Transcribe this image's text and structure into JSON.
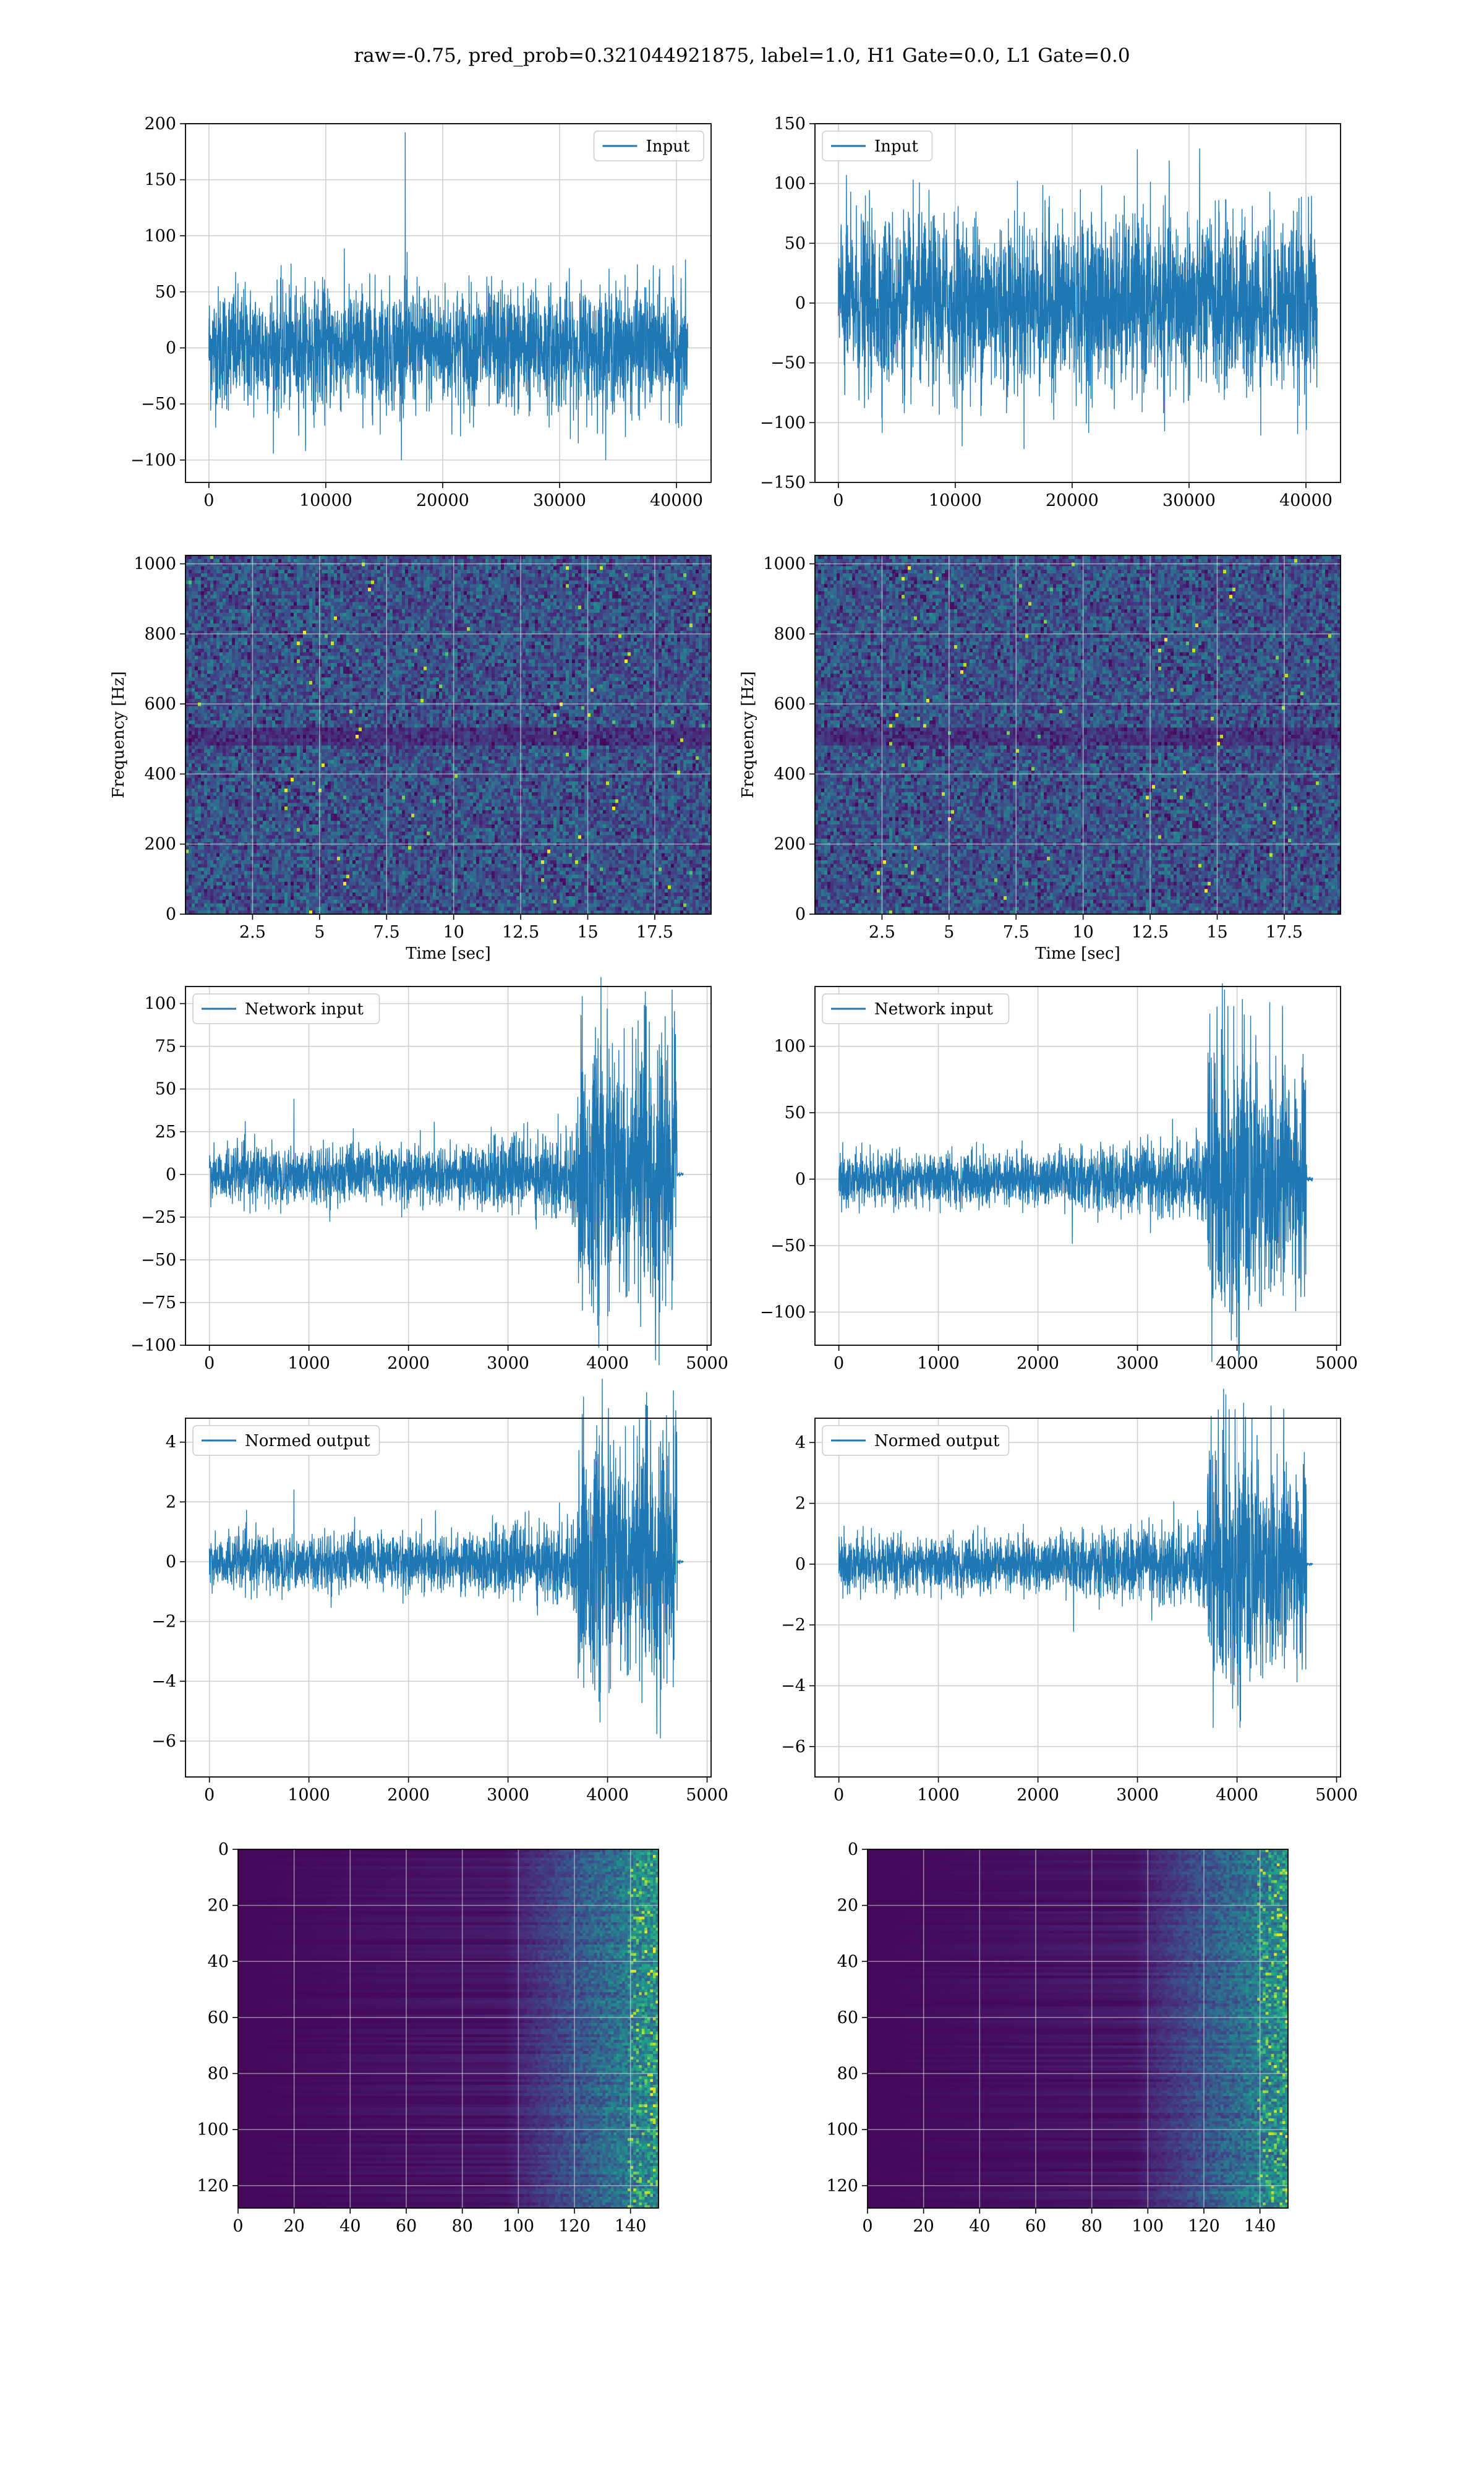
{
  "figure_title": "raw=-0.75, pred_prob=0.321044921875, label=1.0, H1 Gate=0.0, L1 Gate=0.0",
  "colors": {
    "line": "#1f77b4",
    "grid": "#d0d0d0",
    "viridis_low": "#440154",
    "viridis_high": "#fde725"
  },
  "chart_data": [
    {
      "id": "input-h1",
      "type": "line",
      "legend": "Input",
      "legend_loc": "upper right",
      "grid": true,
      "xlim": [
        -2000,
        42960
      ],
      "ylim": [
        -120,
        200
      ],
      "xticks": [
        0,
        10000,
        20000,
        30000,
        40000
      ],
      "yticks": [
        -100,
        -50,
        0,
        50,
        100,
        150,
        200
      ],
      "n": 40960,
      "envelope": {
        "mean": 0,
        "rms_band": 60,
        "peak_band": 100,
        "spike": {
          "x": 16800,
          "y": 192
        }
      }
    },
    {
      "id": "input-l1",
      "type": "line",
      "legend": "Input",
      "legend_loc": "upper left",
      "grid": true,
      "xlim": [
        -2000,
        42960
      ],
      "ylim": [
        -150,
        150
      ],
      "xticks": [
        0,
        10000,
        20000,
        30000,
        40000
      ],
      "yticks": [
        -150,
        -100,
        -50,
        0,
        50,
        100,
        150
      ],
      "n": 40960,
      "envelope": {
        "mean": 0,
        "rms_band": 80,
        "peak_band": 130
      }
    },
    {
      "id": "qtransform-h1",
      "type": "heatmap",
      "grid": true,
      "xlabel": "Time [sec]",
      "ylabel": "Frequency [Hz]",
      "xlim": [
        0,
        19.6
      ],
      "ylim": [
        0,
        1024
      ],
      "xticks": [
        2.5,
        5.0,
        7.5,
        10.0,
        12.5,
        15.0,
        17.5
      ],
      "yticks": [
        0,
        200,
        400,
        600,
        800,
        1000
      ]
    },
    {
      "id": "qtransform-l1",
      "type": "heatmap",
      "grid": true,
      "xlabel": "Time [sec]",
      "ylabel": "Frequency [Hz]",
      "xlim": [
        0,
        19.6
      ],
      "ylim": [
        0,
        1024
      ],
      "xticks": [
        2.5,
        5.0,
        7.5,
        10.0,
        12.5,
        15.0,
        17.5
      ],
      "yticks": [
        0,
        200,
        400,
        600,
        800,
        1000
      ]
    },
    {
      "id": "network-input-h1",
      "type": "line",
      "legend": "Network input",
      "legend_loc": "upper left",
      "grid": true,
      "xlim": [
        -240,
        5040
      ],
      "ylim": [
        -100,
        110
      ],
      "xticks": [
        0,
        1000,
        2000,
        3000,
        4000,
        5000
      ],
      "yticks": [
        -100,
        -75,
        -50,
        -25,
        0,
        25,
        50,
        75,
        100
      ],
      "n": 4800,
      "envelope": {
        "quiet_amp": 18,
        "burst_start": 3700,
        "burst_amp": 85,
        "end": 4700,
        "spike": {
          "x": 850,
          "y": 44
        }
      }
    },
    {
      "id": "network-input-l1",
      "type": "line",
      "legend": "Network input",
      "legend_loc": "upper left",
      "grid": true,
      "xlim": [
        -240,
        5040
      ],
      "ylim": [
        -125,
        145
      ],
      "xticks": [
        0,
        1000,
        2000,
        3000,
        4000,
        5000
      ],
      "yticks": [
        -100,
        -50,
        0,
        50,
        100
      ],
      "n": 4800,
      "envelope": {
        "quiet_amp": 22,
        "burst_start": 3700,
        "burst_amp": 115,
        "end": 4700
      }
    },
    {
      "id": "normed-output-h1",
      "type": "line",
      "legend": "Normed output",
      "legend_loc": "upper left",
      "grid": true,
      "xlim": [
        -240,
        5040
      ],
      "ylim": [
        -7.2,
        4.8
      ],
      "xticks": [
        0,
        1000,
        2000,
        3000,
        4000,
        5000
      ],
      "yticks": [
        -6,
        -4,
        -2,
        0,
        2,
        4
      ],
      "n": 4800,
      "envelope": {
        "quiet_amp": 1.0,
        "burst_start": 3700,
        "burst_amp": 4.5,
        "end": 4700,
        "spike": {
          "x": 850,
          "y": 2.4
        }
      }
    },
    {
      "id": "normed-output-l1",
      "type": "line",
      "legend": "Normed output",
      "legend_loc": "upper left",
      "grid": true,
      "xlim": [
        -240,
        5040
      ],
      "ylim": [
        -7.0,
        4.8
      ],
      "xticks": [
        0,
        1000,
        2000,
        3000,
        4000,
        5000
      ],
      "yticks": [
        -6,
        -4,
        -2,
        0,
        2,
        4
      ],
      "n": 4800,
      "envelope": {
        "quiet_amp": 1.0,
        "burst_start": 3700,
        "burst_amp": 4.5,
        "end": 4700
      }
    },
    {
      "id": "feature-map-h1",
      "type": "heatmap",
      "grid": true,
      "xlim": [
        0,
        150
      ],
      "ylim": [
        128,
        0
      ],
      "rows": 128,
      "cols": 150,
      "xticks": [
        0,
        20,
        40,
        60,
        80,
        100,
        120,
        140
      ],
      "yticks": [
        0,
        20,
        40,
        60,
        80,
        100,
        120
      ]
    },
    {
      "id": "feature-map-l1",
      "type": "heatmap",
      "grid": true,
      "xlim": [
        0,
        150
      ],
      "ylim": [
        128,
        0
      ],
      "rows": 128,
      "cols": 150,
      "xticks": [
        0,
        20,
        40,
        60,
        80,
        100,
        120,
        140
      ],
      "yticks": [
        0,
        20,
        40,
        60,
        80,
        100,
        120
      ]
    }
  ]
}
